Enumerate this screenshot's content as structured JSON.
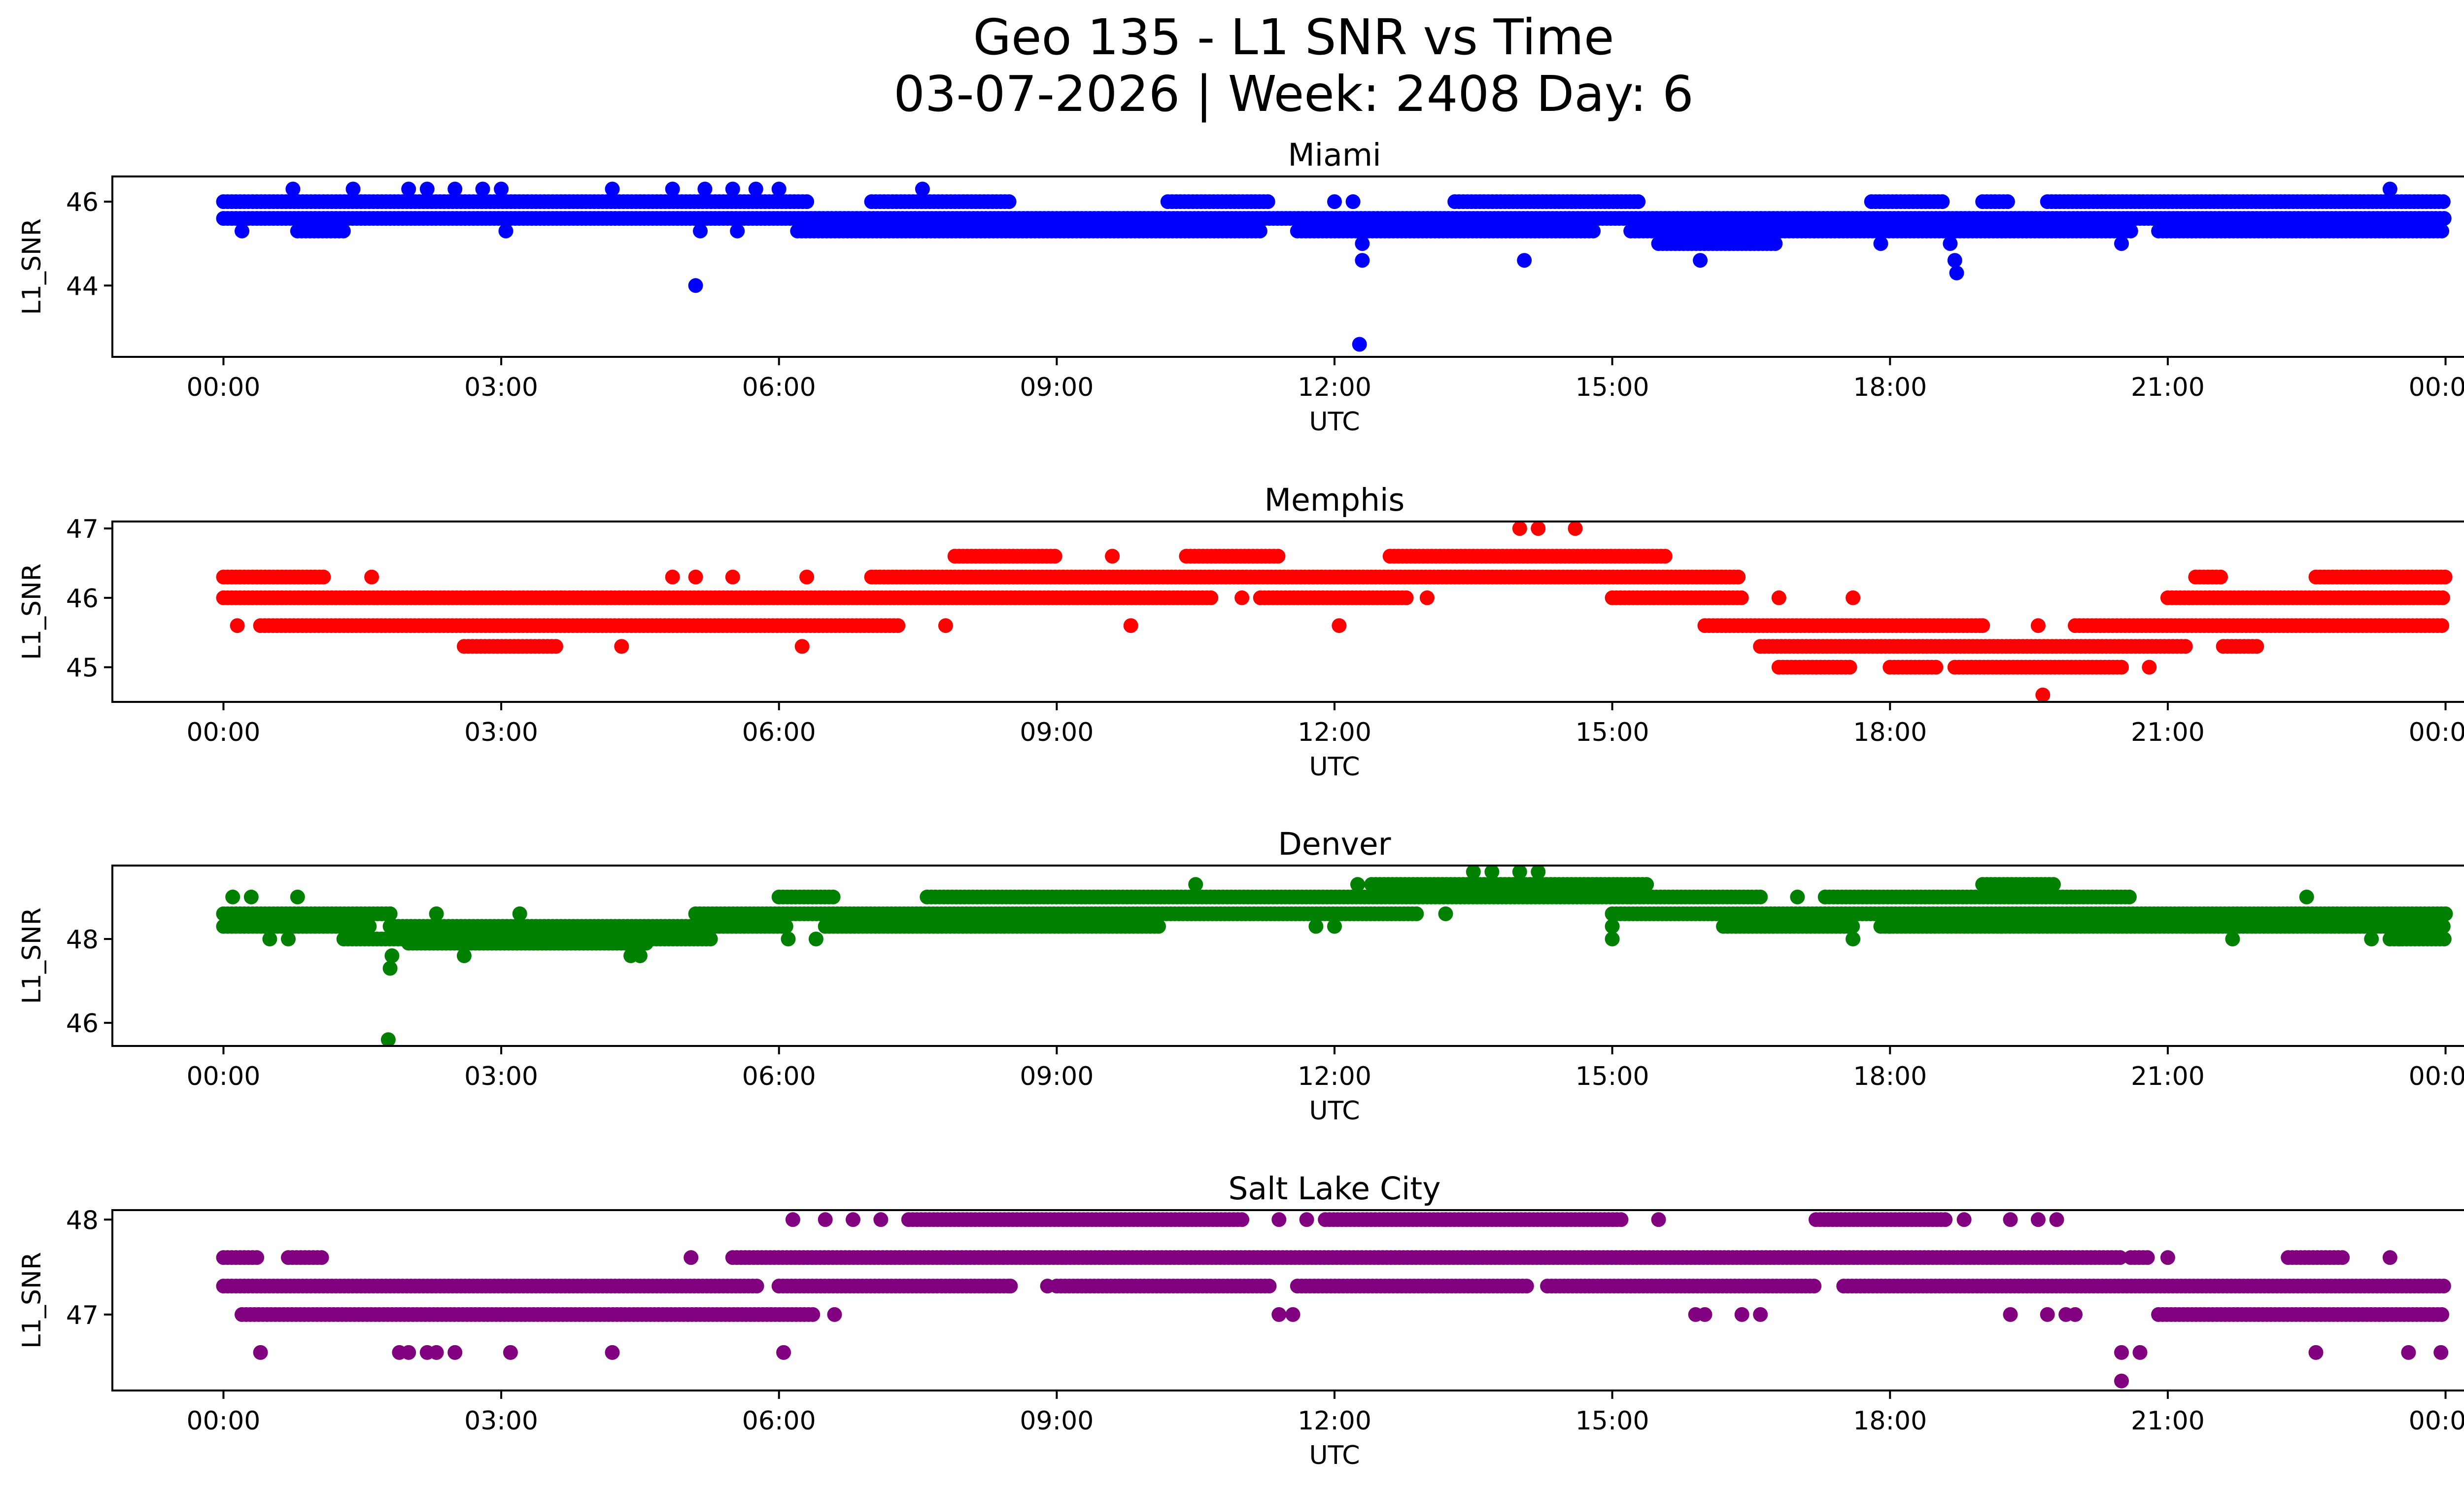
{
  "figure": {
    "title_line1": "Geo 135 - L1 SNR vs Time",
    "title_line2": "03-07-2026 | Week: 2408 Day: 6"
  },
  "chart_data": [
    {
      "type": "scatter",
      "title": "Miami",
      "xlabel": "UTC",
      "ylabel": "L1_SNR",
      "color": "#0000ff",
      "x_tick_labels": [
        "00:00",
        "03:00",
        "06:00",
        "09:00",
        "12:00",
        "15:00",
        "18:00",
        "21:00",
        "00:00"
      ],
      "xlim_hours": [
        -1.2,
        25.2
      ],
      "yticks": [
        44,
        46
      ],
      "ylim": [
        42.3,
        46.6
      ],
      "bands": [
        {
          "y": 46.0,
          "segments": [
            [
              0,
              6.3
            ],
            [
              7.0,
              8.5
            ],
            [
              10.2,
              11.3
            ],
            [
              13.3,
              15.3
            ],
            [
              17.8,
              18.6
            ],
            [
              19.0,
              19.3
            ],
            [
              19.7,
              24.0
            ]
          ]
        },
        {
          "y": 45.6,
          "segments": [
            [
              0,
              24.0
            ]
          ]
        },
        {
          "y": 45.3,
          "segments": [
            [
              0.8,
              1.3
            ],
            [
              6.2,
              11.2
            ],
            [
              11.6,
              14.8
            ],
            [
              15.2,
              20.6
            ],
            [
              20.9,
              24.0
            ]
          ]
        },
        {
          "y": 45.0,
          "segments": [
            [
              15.5,
              16.8
            ]
          ]
        }
      ],
      "points": [
        {
          "x": 5.1,
          "y": 44.0
        },
        {
          "x": 12.27,
          "y": 42.6
        },
        {
          "x": 12.3,
          "y": 44.6
        },
        {
          "x": 12.3,
          "y": 45.0
        },
        {
          "x": 14.05,
          "y": 44.6
        },
        {
          "x": 15.95,
          "y": 44.6
        },
        {
          "x": 18.7,
          "y": 44.6
        },
        {
          "x": 18.72,
          "y": 44.3
        },
        {
          "x": 18.65,
          "y": 45.0
        },
        {
          "x": 20.5,
          "y": 45.0
        },
        {
          "x": 0.2,
          "y": 45.3
        },
        {
          "x": 3.05,
          "y": 45.3
        },
        {
          "x": 5.15,
          "y": 45.3
        },
        {
          "x": 5.55,
          "y": 45.3
        },
        {
          "x": 0.75,
          "y": 46.3
        },
        {
          "x": 1.4,
          "y": 46.3
        },
        {
          "x": 2.0,
          "y": 46.3
        },
        {
          "x": 2.2,
          "y": 46.3
        },
        {
          "x": 2.5,
          "y": 46.3
        },
        {
          "x": 2.8,
          "y": 46.3
        },
        {
          "x": 3.0,
          "y": 46.3
        },
        {
          "x": 4.2,
          "y": 46.3
        },
        {
          "x": 4.85,
          "y": 46.3
        },
        {
          "x": 5.2,
          "y": 46.3
        },
        {
          "x": 5.5,
          "y": 46.3
        },
        {
          "x": 5.75,
          "y": 46.3
        },
        {
          "x": 6.0,
          "y": 46.3
        },
        {
          "x": 7.55,
          "y": 46.3
        },
        {
          "x": 23.4,
          "y": 46.3
        },
        {
          "x": 12.0,
          "y": 46.0
        },
        {
          "x": 12.2,
          "y": 46.0
        },
        {
          "x": 17.9,
          "y": 45.0
        }
      ]
    },
    {
      "type": "scatter",
      "title": "Memphis",
      "xlabel": "UTC",
      "ylabel": "L1_SNR",
      "color": "#ff0000",
      "x_tick_labels": [
        "00:00",
        "03:00",
        "06:00",
        "09:00",
        "12:00",
        "15:00",
        "18:00",
        "21:00",
        "00:00"
      ],
      "xlim_hours": [
        -1.2,
        25.2
      ],
      "yticks": [
        45,
        46,
        47
      ],
      "ylim": [
        44.5,
        47.1
      ],
      "bands": [
        {
          "y": 46.6,
          "segments": [
            [
              7.9,
              9.0
            ],
            [
              10.4,
              11.4
            ],
            [
              12.6,
              15.6
            ]
          ]
        },
        {
          "y": 46.3,
          "segments": [
            [
              0,
              1.1
            ],
            [
              7.0,
              16.4
            ],
            [
              21.3,
              21.6
            ],
            [
              22.6,
              24.0
            ]
          ]
        },
        {
          "y": 46.0,
          "segments": [
            [
              0,
              10.7
            ],
            [
              11.2,
              12.8
            ],
            [
              15.0,
              16.4
            ],
            [
              21.0,
              24.0
            ]
          ]
        },
        {
          "y": 45.6,
          "segments": [
            [
              0.4,
              7.3
            ],
            [
              16.0,
              19.0
            ],
            [
              20.0,
              24.0
            ]
          ]
        },
        {
          "y": 45.3,
          "segments": [
            [
              2.6,
              3.6
            ],
            [
              16.6,
              21.2
            ],
            [
              21.6,
              22.0
            ]
          ]
        },
        {
          "y": 45.0,
          "segments": [
            [
              16.8,
              17.6
            ],
            [
              18.0,
              18.5
            ],
            [
              18.7,
              20.5
            ]
          ]
        }
      ],
      "points": [
        {
          "x": 14.0,
          "y": 47.0
        },
        {
          "x": 14.2,
          "y": 47.0
        },
        {
          "x": 14.6,
          "y": 47.0
        },
        {
          "x": 19.65,
          "y": 44.6
        },
        {
          "x": 0.15,
          "y": 45.6
        },
        {
          "x": 4.3,
          "y": 45.3
        },
        {
          "x": 6.25,
          "y": 45.3
        },
        {
          "x": 1.6,
          "y": 46.3
        },
        {
          "x": 4.85,
          "y": 46.3
        },
        {
          "x": 5.1,
          "y": 46.3
        },
        {
          "x": 5.5,
          "y": 46.3
        },
        {
          "x": 6.3,
          "y": 46.3
        },
        {
          "x": 7.8,
          "y": 45.6
        },
        {
          "x": 9.8,
          "y": 45.6
        },
        {
          "x": 12.05,
          "y": 45.6
        },
        {
          "x": 17.6,
          "y": 46.0
        },
        {
          "x": 19.0,
          "y": 45.6
        },
        {
          "x": 19.6,
          "y": 45.6
        },
        {
          "x": 20.8,
          "y": 45.0
        },
        {
          "x": 11.0,
          "y": 46.0
        },
        {
          "x": 13.0,
          "y": 46.0
        },
        {
          "x": 9.6,
          "y": 46.6
        },
        {
          "x": 16.8,
          "y": 46.0
        }
      ]
    },
    {
      "type": "scatter",
      "title": "Denver",
      "xlabel": "UTC",
      "ylabel": "L1_SNR",
      "color": "#008000",
      "x_tick_labels": [
        "00:00",
        "03:00",
        "06:00",
        "09:00",
        "12:00",
        "15:00",
        "18:00",
        "21:00",
        "00:00"
      ],
      "xlim_hours": [
        -1.2,
        25.2
      ],
      "yticks": [
        46,
        48
      ],
      "ylim": [
        45.45,
        49.75
      ],
      "bands": [
        {
          "y": 49.3,
          "segments": [
            [
              12.4,
              15.4
            ],
            [
              19.0,
              19.8
            ]
          ]
        },
        {
          "y": 49.0,
          "segments": [
            [
              6.0,
              6.6
            ],
            [
              7.6,
              16.6
            ],
            [
              17.3,
              20.6
            ]
          ]
        },
        {
          "y": 48.6,
          "segments": [
            [
              0,
              1.8
            ],
            [
              5.1,
              12.9
            ],
            [
              15.0,
              24.0
            ]
          ]
        },
        {
          "y": 48.3,
          "segments": [
            [
              0,
              1.6
            ],
            [
              1.8,
              6.1
            ],
            [
              6.5,
              10.1
            ],
            [
              16.2,
              17.6
            ],
            [
              17.9,
              24.0
            ]
          ]
        },
        {
          "y": 48.0,
          "segments": [
            [
              1.3,
              5.3
            ],
            [
              23.4,
              24.0
            ]
          ]
        },
        {
          "y": 47.9,
          "segments": [
            [
              2.0,
              4.6
            ]
          ]
        }
      ],
      "points": [
        {
          "x": 1.78,
          "y": 45.6
        },
        {
          "x": 1.8,
          "y": 47.3
        },
        {
          "x": 1.82,
          "y": 47.6
        },
        {
          "x": 2.6,
          "y": 47.6
        },
        {
          "x": 4.4,
          "y": 47.6
        },
        {
          "x": 4.5,
          "y": 47.6
        },
        {
          "x": 0.5,
          "y": 48.0
        },
        {
          "x": 0.7,
          "y": 48.0
        },
        {
          "x": 6.1,
          "y": 48.0
        },
        {
          "x": 6.4,
          "y": 48.0
        },
        {
          "x": 0.8,
          "y": 49.0
        },
        {
          "x": 0.1,
          "y": 49.0
        },
        {
          "x": 0.3,
          "y": 49.0
        },
        {
          "x": 1.8,
          "y": 48.6
        },
        {
          "x": 2.3,
          "y": 48.6
        },
        {
          "x": 3.2,
          "y": 48.6
        },
        {
          "x": 10.5,
          "y": 49.3
        },
        {
          "x": 12.25,
          "y": 49.3
        },
        {
          "x": 13.2,
          "y": 48.6
        },
        {
          "x": 13.5,
          "y": 49.6
        },
        {
          "x": 13.7,
          "y": 49.6
        },
        {
          "x": 14.0,
          "y": 49.6
        },
        {
          "x": 14.2,
          "y": 49.6
        },
        {
          "x": 15.0,
          "y": 48.0
        },
        {
          "x": 15.0,
          "y": 48.3
        },
        {
          "x": 17.6,
          "y": 48.0
        },
        {
          "x": 18.0,
          "y": 48.3
        },
        {
          "x": 21.7,
          "y": 48.0
        },
        {
          "x": 22.5,
          "y": 49.0
        },
        {
          "x": 23.2,
          "y": 48.0
        },
        {
          "x": 23.5,
          "y": 48.0
        },
        {
          "x": 11.8,
          "y": 48.3
        },
        {
          "x": 12.0,
          "y": 48.3
        },
        {
          "x": 19.2,
          "y": 48.3
        },
        {
          "x": 17.0,
          "y": 49.0
        },
        {
          "x": 17.3,
          "y": 49.0
        },
        {
          "x": 15.2,
          "y": 49.0
        }
      ]
    },
    {
      "type": "scatter",
      "title": "Salt Lake City",
      "xlabel": "UTC",
      "ylabel": "L1_SNR",
      "color": "#800080",
      "x_tick_labels": [
        "00:00",
        "03:00",
        "06:00",
        "09:00",
        "12:00",
        "15:00",
        "18:00",
        "21:00",
        "00:00"
      ],
      "xlim_hours": [
        -1.2,
        25.2
      ],
      "yticks": [
        47,
        48
      ],
      "ylim": [
        46.2,
        48.1
      ],
      "bands": [
        {
          "y": 48.0,
          "segments": [
            [
              7.4,
              11.0
            ],
            [
              11.9,
              15.1
            ],
            [
              17.2,
              18.6
            ]
          ]
        },
        {
          "y": 47.6,
          "segments": [
            [
              0,
              0.4
            ],
            [
              0.7,
              1.1
            ],
            [
              5.5,
              20.5
            ],
            [
              20.6,
              20.8
            ],
            [
              22.3,
              22.9
            ]
          ]
        },
        {
          "y": 47.3,
          "segments": [
            [
              0,
              5.8
            ],
            [
              6.0,
              8.5
            ],
            [
              9.0,
              11.3
            ],
            [
              11.6,
              14.1
            ],
            [
              14.3,
              17.2
            ],
            [
              17.5,
              24.0
            ]
          ]
        },
        {
          "y": 47.0,
          "segments": [
            [
              0.2,
              6.4
            ],
            [
              20.9,
              24.0
            ]
          ]
        }
      ],
      "points": [
        {
          "x": 20.5,
          "y": 46.3
        },
        {
          "x": 0.4,
          "y": 46.6
        },
        {
          "x": 1.9,
          "y": 46.6
        },
        {
          "x": 2.0,
          "y": 46.6
        },
        {
          "x": 2.2,
          "y": 46.6
        },
        {
          "x": 2.3,
          "y": 46.6
        },
        {
          "x": 2.5,
          "y": 46.6
        },
        {
          "x": 3.1,
          "y": 46.6
        },
        {
          "x": 4.2,
          "y": 46.6
        },
        {
          "x": 6.05,
          "y": 46.6
        },
        {
          "x": 20.5,
          "y": 46.6
        },
        {
          "x": 20.7,
          "y": 46.6
        },
        {
          "x": 22.6,
          "y": 46.6
        },
        {
          "x": 23.6,
          "y": 46.6
        },
        {
          "x": 23.95,
          "y": 46.6
        },
        {
          "x": 6.6,
          "y": 47.0
        },
        {
          "x": 11.4,
          "y": 47.0
        },
        {
          "x": 11.55,
          "y": 47.0
        },
        {
          "x": 15.9,
          "y": 47.0
        },
        {
          "x": 16.0,
          "y": 47.0
        },
        {
          "x": 16.4,
          "y": 47.0
        },
        {
          "x": 16.6,
          "y": 47.0
        },
        {
          "x": 19.3,
          "y": 47.0
        },
        {
          "x": 19.7,
          "y": 47.0
        },
        {
          "x": 19.9,
          "y": 47.0
        },
        {
          "x": 20.0,
          "y": 47.0
        },
        {
          "x": 5.05,
          "y": 47.6
        },
        {
          "x": 6.15,
          "y": 48.0
        },
        {
          "x": 6.5,
          "y": 48.0
        },
        {
          "x": 6.8,
          "y": 48.0
        },
        {
          "x": 7.1,
          "y": 48.0
        },
        {
          "x": 11.4,
          "y": 48.0
        },
        {
          "x": 11.7,
          "y": 48.0
        },
        {
          "x": 15.5,
          "y": 48.0
        },
        {
          "x": 18.8,
          "y": 48.0
        },
        {
          "x": 19.3,
          "y": 48.0
        },
        {
          "x": 19.6,
          "y": 48.0
        },
        {
          "x": 19.8,
          "y": 48.0
        },
        {
          "x": 21.0,
          "y": 47.6
        },
        {
          "x": 23.4,
          "y": 47.6
        },
        {
          "x": 8.5,
          "y": 47.3
        },
        {
          "x": 8.9,
          "y": 47.3
        },
        {
          "x": 13.2,
          "y": 48.0
        }
      ]
    }
  ]
}
